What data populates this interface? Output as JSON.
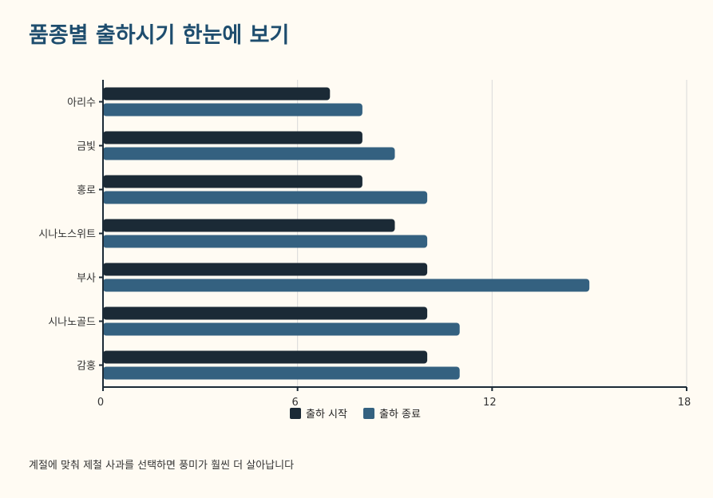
{
  "title": "품종별 출하시기 한눈에 보기",
  "footnote": "계절에 맞춰 제철 사과를 선택하면 풍미가 훨씬 더 살아납니다",
  "colors": {
    "start": "#1b2a36",
    "end": "#346180",
    "axis": "#1b2a36",
    "grid": "#d9d9d9"
  },
  "chart_data": {
    "type": "bar",
    "orientation": "horizontal",
    "categories": [
      "아리수",
      "금빛",
      "홍로",
      "시나노스위트",
      "부사",
      "시나노골드",
      "감홍"
    ],
    "series": [
      {
        "name": "출하 시작",
        "values": [
          7,
          8,
          8,
          9,
          10,
          10,
          10
        ]
      },
      {
        "name": "출하 종료",
        "values": [
          8,
          9,
          10,
          10,
          15,
          11,
          11
        ]
      }
    ],
    "xlim": [
      0,
      18
    ],
    "xticks": [
      0,
      6,
      12,
      18
    ],
    "grid": true,
    "legend_position": "bottom-center"
  }
}
